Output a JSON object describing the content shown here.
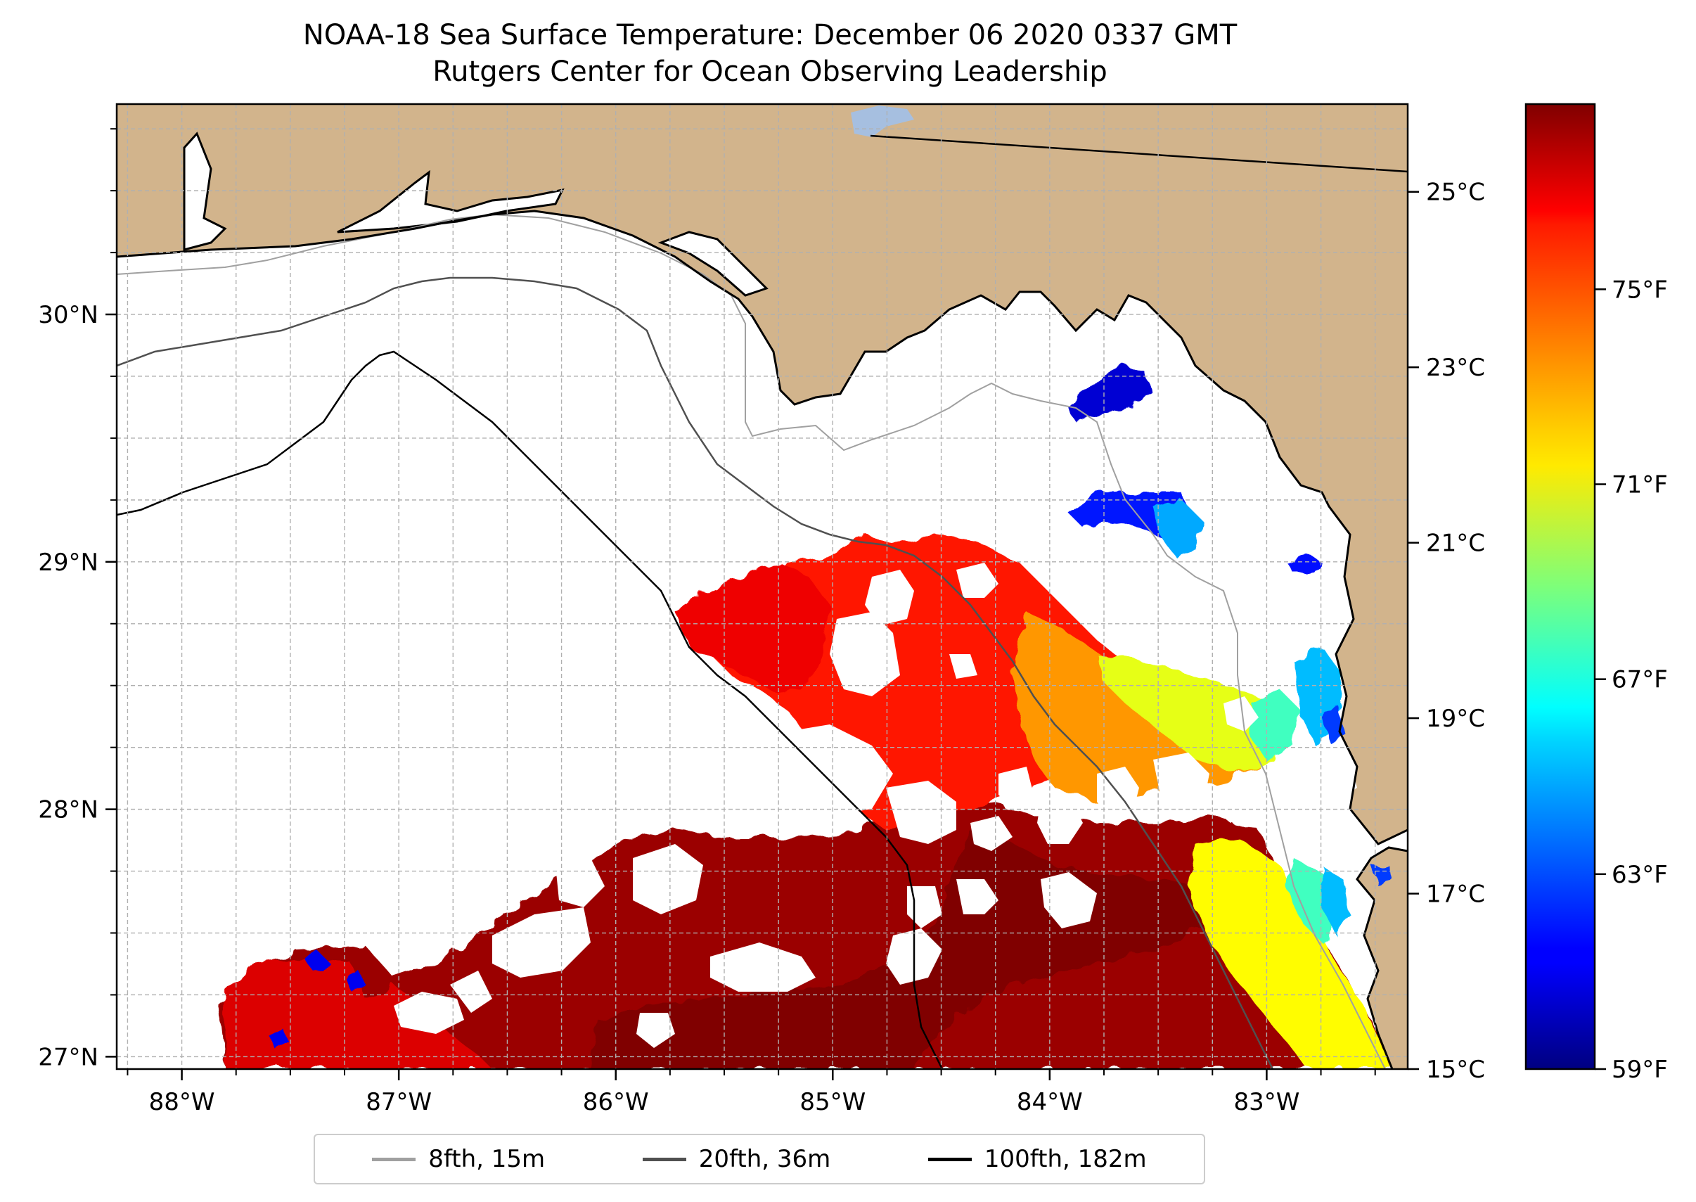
{
  "title": {
    "line1": "NOAA-18 Sea Surface Temperature: December 06 2020 0337 GMT",
    "line2": "Rutgers Center for Ocean Observing Leadership"
  },
  "map": {
    "lon_range": [
      -88.3,
      -82.35
    ],
    "lat_range": [
      26.95,
      30.85
    ],
    "lon_ticks": [
      {
        "value": -88,
        "label": "88°W"
      },
      {
        "value": -87,
        "label": "87°W"
      },
      {
        "value": -86,
        "label": "86°W"
      },
      {
        "value": -85,
        "label": "85°W"
      },
      {
        "value": -84,
        "label": "84°W"
      },
      {
        "value": -83,
        "label": "83°W"
      }
    ],
    "lat_ticks": [
      {
        "value": 27,
        "label": "27°N"
      },
      {
        "value": 28,
        "label": "28°N"
      },
      {
        "value": 29,
        "label": "29°N"
      },
      {
        "value": 30,
        "label": "30°N"
      }
    ],
    "gridlines": "dashed, every 0.25°",
    "land_color": "#d2b48c",
    "ocean_color": "#ffffff",
    "lake_color": "#a6bfe0"
  },
  "colorbar": {
    "colormap": "jet",
    "range_c": [
      15,
      26
    ],
    "celsius_ticks": [
      {
        "value": 15,
        "label": "15°C"
      },
      {
        "value": 17,
        "label": "17°C"
      },
      {
        "value": 19,
        "label": "19°C"
      },
      {
        "value": 21,
        "label": "21°C"
      },
      {
        "value": 23,
        "label": "23°C"
      },
      {
        "value": 25,
        "label": "25°C"
      }
    ],
    "fahrenheit_ticks": [
      {
        "value": 59,
        "label": "59°F"
      },
      {
        "value": 63,
        "label": "63°F"
      },
      {
        "value": 67,
        "label": "67°F"
      },
      {
        "value": 71,
        "label": "71°F"
      },
      {
        "value": 75,
        "label": "75°F"
      }
    ]
  },
  "legend": {
    "placement": "bottom-center",
    "items": [
      {
        "label": "8fth, 15m",
        "color": "#a0a0a0"
      },
      {
        "label": "20fth, 36m",
        "color": "#505050"
      },
      {
        "label": "100fth, 182m",
        "color": "#000000"
      }
    ]
  },
  "sst_patches": [
    {
      "name": "big-southern-band",
      "temp_c": 25.7
    },
    {
      "name": "central-shelf",
      "temp_c": 24.4
    },
    {
      "name": "eastern-warm",
      "temp_c": 23.0
    },
    {
      "name": "west-warm",
      "temp_c": 24.8
    },
    {
      "name": "southwest-patch",
      "temp_c": 25.0
    },
    {
      "name": "south-core",
      "temp_c": 26.0
    },
    {
      "name": "east-yellow",
      "temp_c": 21.6
    },
    {
      "name": "southeast-yellow",
      "temp_c": 21.9
    },
    {
      "name": "nearshore-green",
      "temp_c": 19.8
    },
    {
      "name": "nearshore-cyan",
      "temp_c": 18.4
    },
    {
      "name": "apalachee-cold",
      "temp_c": 15.9
    },
    {
      "name": "bigbend-cold",
      "temp_c": 16.6
    },
    {
      "name": "bigbend-mid",
      "temp_c": 18.2
    },
    {
      "name": "cedar-key-cold",
      "temp_c": 16.5
    },
    {
      "name": "tampa-cold",
      "temp_c": 17.0
    },
    {
      "name": "west-cold-blobs",
      "temp_c": 16.2
    }
  ]
}
